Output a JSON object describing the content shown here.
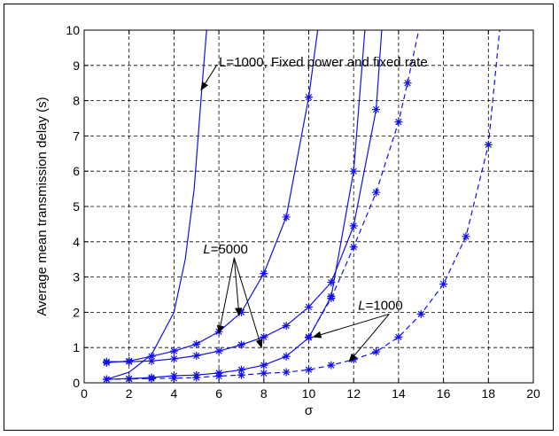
{
  "chart_data": {
    "type": "line",
    "xlabel": "σ",
    "ylabel": "Average mean transmission delay (s)",
    "xlim": [
      0,
      20
    ],
    "ylim": [
      0,
      10
    ],
    "xticks": [
      0,
      2,
      4,
      6,
      8,
      10,
      12,
      14,
      16,
      18,
      20
    ],
    "yticks": [
      0,
      1,
      2,
      3,
      4,
      5,
      6,
      7,
      8,
      9,
      10
    ],
    "grid": true,
    "series": [
      {
        "style": "solid",
        "marker": "none",
        "points": [
          [
            1,
            0.1
          ],
          [
            2,
            0.3
          ],
          [
            3,
            0.8
          ],
          [
            4,
            2.0
          ],
          [
            4.5,
            3.5
          ],
          [
            4.9,
            5.5
          ],
          [
            5.2,
            8.0
          ],
          [
            5.45,
            10.0
          ]
        ]
      },
      {
        "style": "solid",
        "marker": "asterisk",
        "points": [
          [
            1,
            0.57
          ],
          [
            2,
            0.62
          ],
          [
            3,
            0.75
          ],
          [
            4,
            0.9
          ],
          [
            5,
            1.1
          ],
          [
            6,
            1.45
          ],
          [
            7,
            2.0
          ],
          [
            8,
            3.1
          ],
          [
            9,
            4.7
          ],
          [
            10,
            8.1
          ],
          [
            10.4,
            10.0
          ]
        ]
      },
      {
        "style": "solid",
        "marker": "asterisk",
        "points": [
          [
            1,
            0.6
          ],
          [
            2,
            0.6
          ],
          [
            3,
            0.62
          ],
          [
            4,
            0.68
          ],
          [
            5,
            0.77
          ],
          [
            6,
            0.9
          ],
          [
            7,
            1.08
          ],
          [
            8,
            1.3
          ],
          [
            9,
            1.62
          ],
          [
            10,
            2.15
          ],
          [
            11,
            2.85
          ],
          [
            12,
            4.45
          ],
          [
            13,
            7.75
          ],
          [
            13.25,
            10.0
          ]
        ]
      },
      {
        "style": "solid",
        "marker": "asterisk",
        "points": [
          [
            1,
            0.1
          ],
          [
            2,
            0.12
          ],
          [
            3,
            0.15
          ],
          [
            4,
            0.2
          ],
          [
            5,
            0.22
          ],
          [
            6,
            0.28
          ],
          [
            7,
            0.37
          ],
          [
            8,
            0.5
          ],
          [
            9,
            0.75
          ],
          [
            10,
            1.28
          ],
          [
            11,
            2.45
          ],
          [
            12,
            6.0
          ],
          [
            12.5,
            10.0
          ]
        ]
      },
      {
        "style": "dashed",
        "marker": "asterisk",
        "points": [
          [
            1,
            0.1
          ],
          [
            2,
            0.11
          ],
          [
            3,
            0.12
          ],
          [
            4,
            0.13
          ],
          [
            5,
            0.15
          ],
          [
            6,
            0.19
          ],
          [
            7,
            0.22
          ],
          [
            8,
            0.27
          ],
          [
            9,
            0.3
          ],
          [
            10,
            0.37
          ],
          [
            11,
            0.5
          ],
          [
            12,
            0.66
          ],
          [
            13,
            0.88
          ],
          [
            14,
            1.3
          ],
          [
            15,
            1.95
          ],
          [
            16,
            2.8
          ],
          [
            17,
            4.15
          ],
          [
            18,
            6.75
          ],
          [
            18.5,
            10.0
          ]
        ]
      },
      {
        "style": "dashed",
        "marker": "asterisk",
        "points": [
          [
            10,
            1.3
          ],
          [
            11,
            2.4
          ],
          [
            12,
            3.85
          ],
          [
            13,
            5.4
          ],
          [
            14,
            7.4
          ],
          [
            14.4,
            8.5
          ],
          [
            14.9,
            10.0
          ]
        ]
      }
    ],
    "annotations": [
      {
        "text": "L=1000, Fixed power and fixed rate",
        "x": 6.0,
        "y": 9.1,
        "arrow_to": [
          [
            5.2,
            8.3
          ]
        ]
      },
      {
        "text_italic": "L",
        "text": "=5000",
        "x": 5.3,
        "y": 3.8,
        "arrow_to": [
          [
            6.0,
            1.4
          ],
          [
            6.9,
            1.9
          ],
          [
            7.9,
            1.0
          ]
        ]
      },
      {
        "text_italic": "L",
        "text": "=1000",
        "x": 12.2,
        "y": 2.2,
        "arrow_to": [
          [
            10.2,
            1.3
          ],
          [
            11.8,
            0.6
          ]
        ]
      }
    ]
  }
}
